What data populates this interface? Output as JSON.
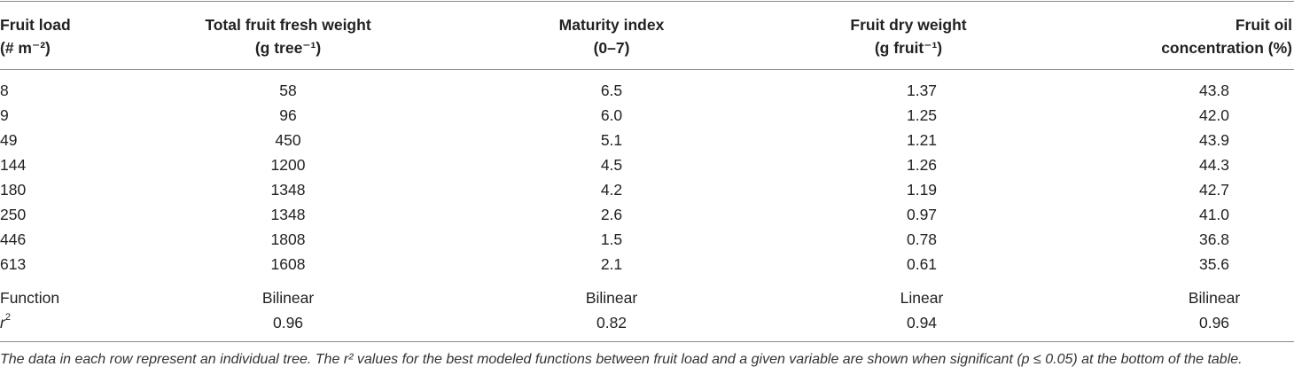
{
  "table": {
    "headers": [
      [
        "Fruit load",
        "(# m⁻²)"
      ],
      [
        "Total fruit fresh weight",
        "(g tree⁻¹)"
      ],
      [
        "Maturity index",
        "(0–7)"
      ],
      [
        "Fruit dry weight",
        "(g fruit⁻¹)"
      ],
      [
        "Fruit oil",
        "concentration (%)"
      ]
    ],
    "rows": [
      [
        "8",
        "58",
        "6.5",
        "1.37",
        "43.8"
      ],
      [
        "9",
        "96",
        "6.0",
        "1.25",
        "42.0"
      ],
      [
        "49",
        "450",
        "5.1",
        "1.21",
        "43.9"
      ],
      [
        "144",
        "1200",
        "4.5",
        "1.26",
        "44.3"
      ],
      [
        "180",
        "1348",
        "4.2",
        "1.19",
        "42.7"
      ],
      [
        "250",
        "1348",
        "2.6",
        "0.97",
        "41.0"
      ],
      [
        "446",
        "1808",
        "1.5",
        "0.78",
        "36.8"
      ],
      [
        "613",
        "1608",
        "2.1",
        "0.61",
        "35.6"
      ]
    ],
    "function_row": [
      "Function",
      "Bilinear",
      "Bilinear",
      "Linear",
      "Bilinear"
    ],
    "r2_row": {
      "label_base": "r",
      "label_sup": "2",
      "values": [
        "0.96",
        "0.82",
        "0.94",
        "0.96"
      ]
    }
  },
  "footnote": "The data in each row represent an individual tree. The r² values for the best modeled functions between fruit load and a given variable are shown when significant (p ≤ 0.05) at the bottom of the table."
}
